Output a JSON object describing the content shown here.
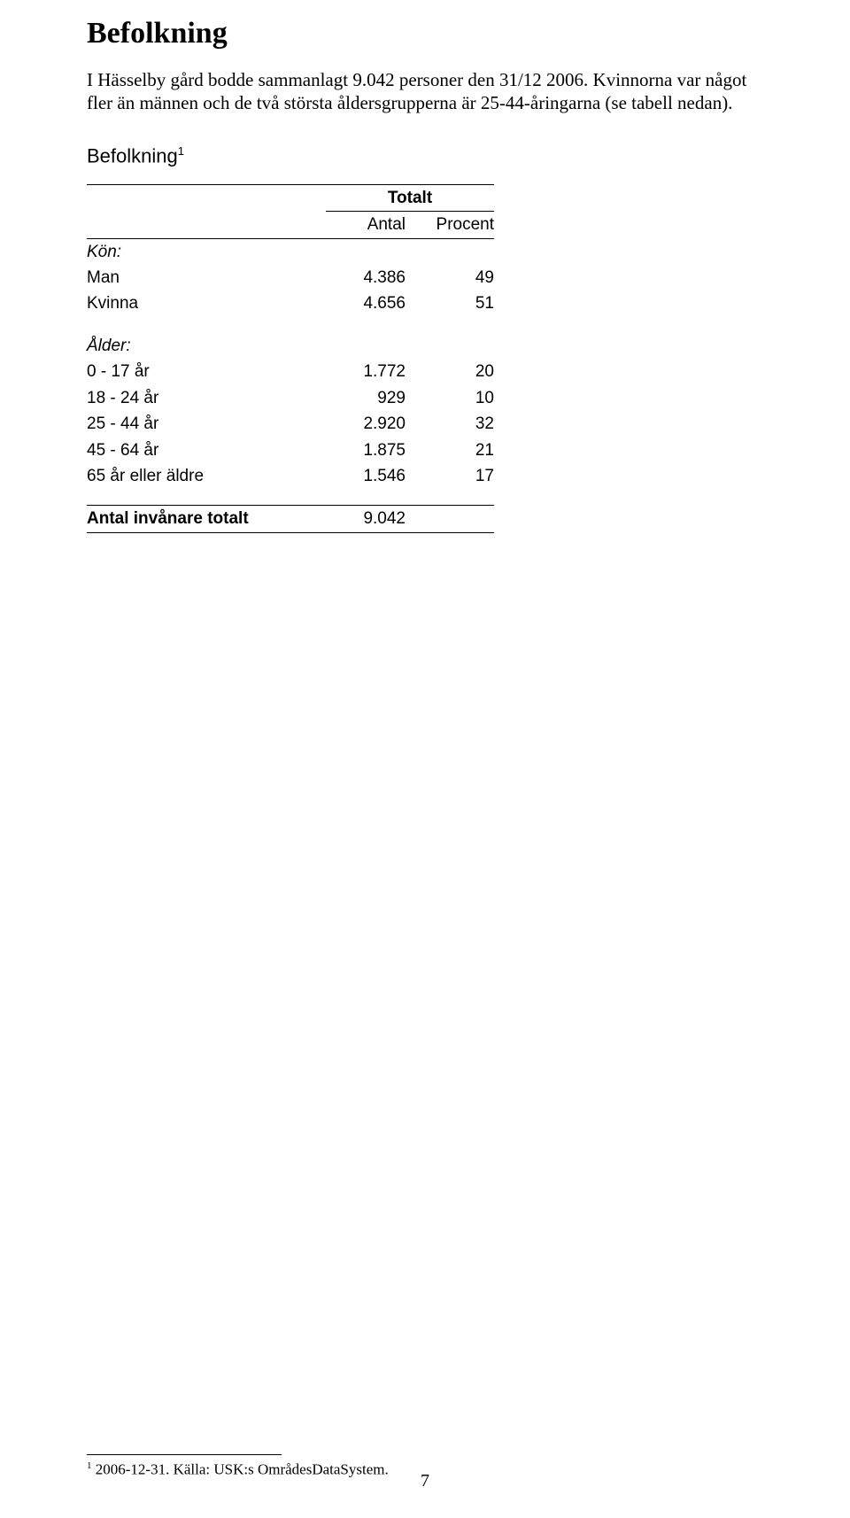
{
  "title": "Befolkning",
  "paragraph": "I Hässelby gård bodde sammanlagt 9.042 personer den 31/12 2006. Kvinnorna var något fler än männen och de två största åldersgrupperna är 25-44-åringarna (se tabell nedan).",
  "subhead": "Befolkning",
  "subhead_super": "1",
  "table": {
    "header_group": "Totalt",
    "header_cols": [
      "Antal",
      "Procent"
    ],
    "section1_label": "Kön:",
    "section1_rows": [
      {
        "label": "Man",
        "antal": "4.386",
        "procent": "49"
      },
      {
        "label": "Kvinna",
        "antal": "4.656",
        "procent": "51"
      }
    ],
    "section2_label": "Ålder:",
    "section2_rows": [
      {
        "label": "0 - 17 år",
        "antal": "1.772",
        "procent": "20"
      },
      {
        "label": "18 - 24 år",
        "antal": "929",
        "procent": "10"
      },
      {
        "label": "25 - 44 år",
        "antal": "2.920",
        "procent": "32"
      },
      {
        "label": "45 - 64 år",
        "antal": "1.875",
        "procent": "21"
      },
      {
        "label": "65 år eller äldre",
        "antal": "1.546",
        "procent": "17"
      }
    ],
    "total_label": "Antal invånare totalt",
    "total_value": "9.042"
  },
  "footnote_super": "1",
  "footnote_text": " 2006-12-31. Källa: USK:s OmrådesDataSystem.",
  "page_number": "7"
}
